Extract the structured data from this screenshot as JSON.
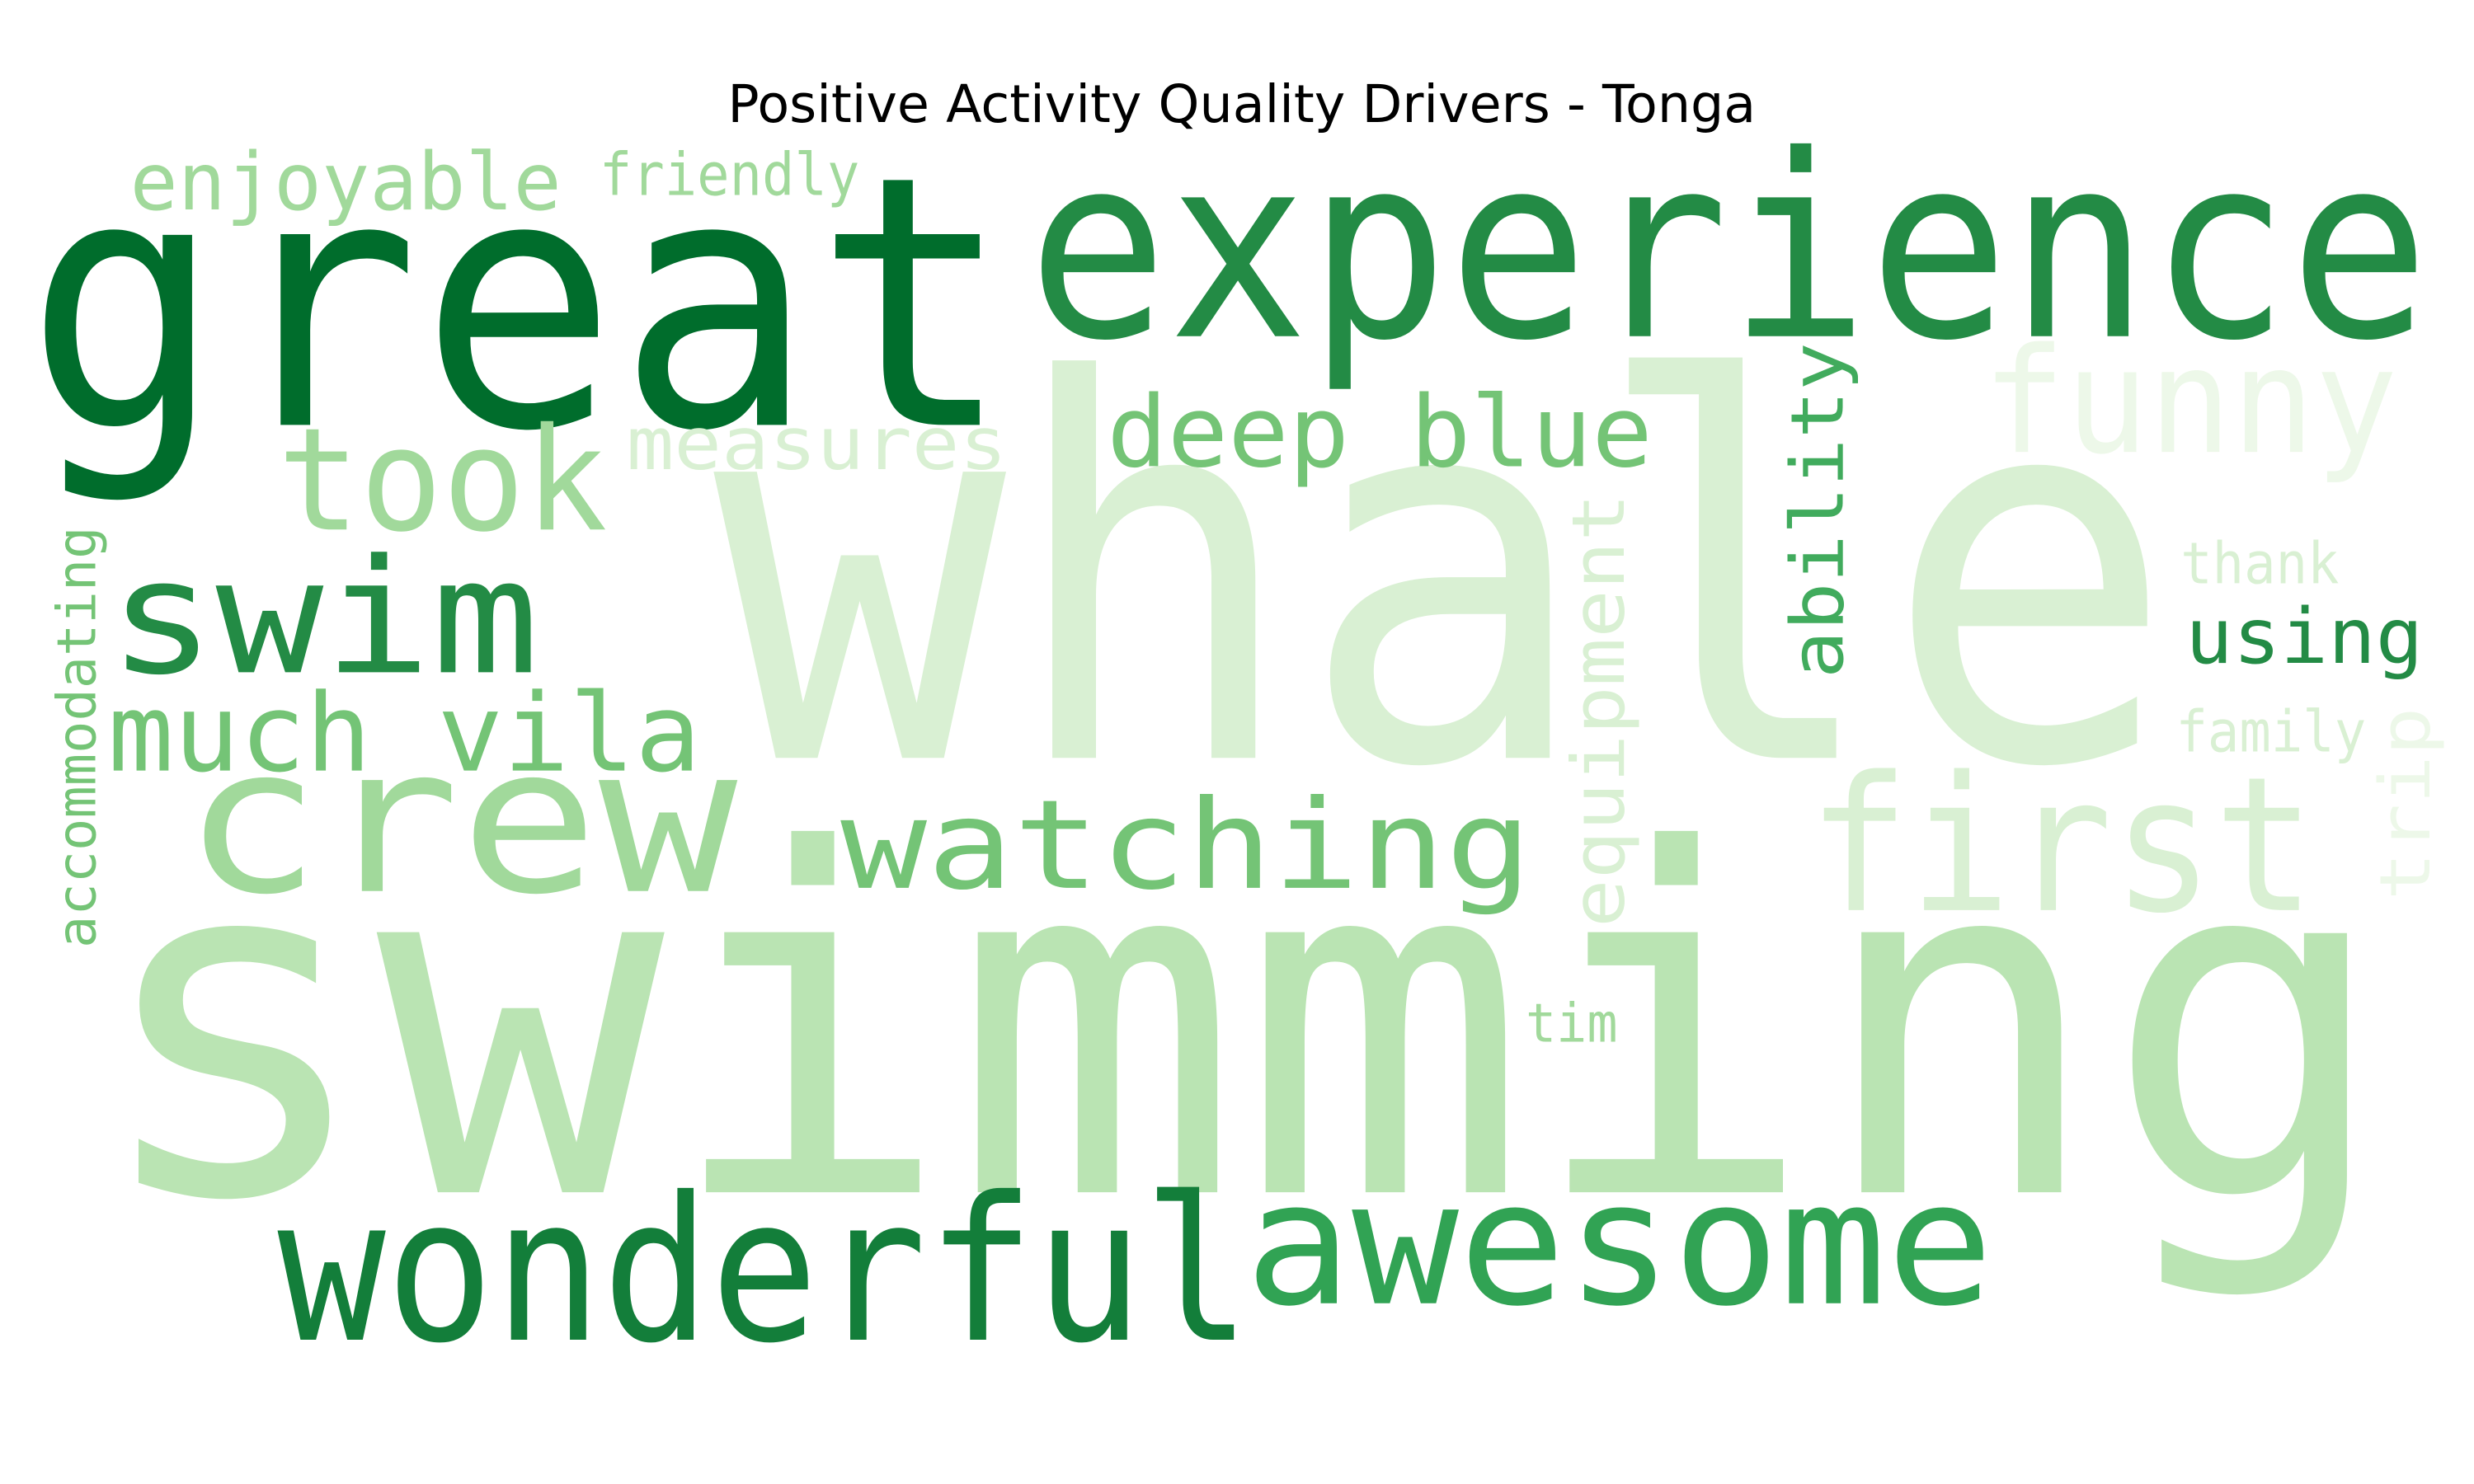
{
  "title": "Positive Activity Quality Drivers - Tonga",
  "words": [
    {
      "id": "great",
      "text": "great",
      "color": "#006d2c",
      "orientation": "horizontal"
    },
    {
      "id": "experience",
      "text": "experience",
      "color": "#238b45",
      "orientation": "horizontal"
    },
    {
      "id": "enjoyable",
      "text": "enjoyable",
      "color": "#a1d99b",
      "orientation": "horizontal"
    },
    {
      "id": "friendly",
      "text": "friendly",
      "color": "#a1d99b",
      "orientation": "horizontal"
    },
    {
      "id": "whale",
      "text": "whale",
      "color": "#d9f0d3",
      "orientation": "horizontal"
    },
    {
      "id": "swimming",
      "text": "swimming",
      "color": "#bae4b3",
      "orientation": "horizontal"
    },
    {
      "id": "funny",
      "text": "funny",
      "color": "#edf8e9",
      "orientation": "horizontal"
    },
    {
      "id": "took",
      "text": "took",
      "color": "#a1d99b",
      "orientation": "horizontal"
    },
    {
      "id": "measures",
      "text": "measures",
      "color": "#d9f0d3",
      "orientation": "horizontal"
    },
    {
      "id": "deep-blue",
      "text": "deep blue",
      "color": "#74c476",
      "orientation": "horizontal"
    },
    {
      "id": "swim",
      "text": "swim",
      "color": "#238b45",
      "orientation": "horizontal"
    },
    {
      "id": "much-vila",
      "text": "much vila",
      "color": "#74c476",
      "orientation": "horizontal"
    },
    {
      "id": "crew",
      "text": "crew",
      "color": "#a1d99b",
      "orientation": "horizontal"
    },
    {
      "id": "watching",
      "text": "watching",
      "color": "#74c476",
      "orientation": "horizontal"
    },
    {
      "id": "first",
      "text": "first",
      "color": "#d9f0d3",
      "orientation": "horizontal"
    },
    {
      "id": "ability",
      "text": "ability",
      "color": "#41ab5d",
      "orientation": "vertical"
    },
    {
      "id": "equipment",
      "text": "equipment",
      "color": "#d9f0d3",
      "orientation": "vertical"
    },
    {
      "id": "accommodating",
      "text": "accommodating",
      "color": "#74c476",
      "orientation": "vertical"
    },
    {
      "id": "thank",
      "text": "thank",
      "color": "#d9f0d3",
      "orientation": "horizontal"
    },
    {
      "id": "using",
      "text": "using",
      "color": "#238b45",
      "orientation": "horizontal"
    },
    {
      "id": "family",
      "text": "family",
      "color": "#d9f0d3",
      "orientation": "horizontal"
    },
    {
      "id": "trip",
      "text": "trip",
      "color": "#edf8e9",
      "orientation": "vertical"
    },
    {
      "id": "tim",
      "text": "tim",
      "color": "#a1d99b",
      "orientation": "horizontal"
    },
    {
      "id": "wonderful",
      "text": "wonderful",
      "color": "#137e3a",
      "orientation": "horizontal"
    },
    {
      "id": "awesome",
      "text": "awesome",
      "color": "#31a354",
      "orientation": "horizontal"
    }
  ]
}
